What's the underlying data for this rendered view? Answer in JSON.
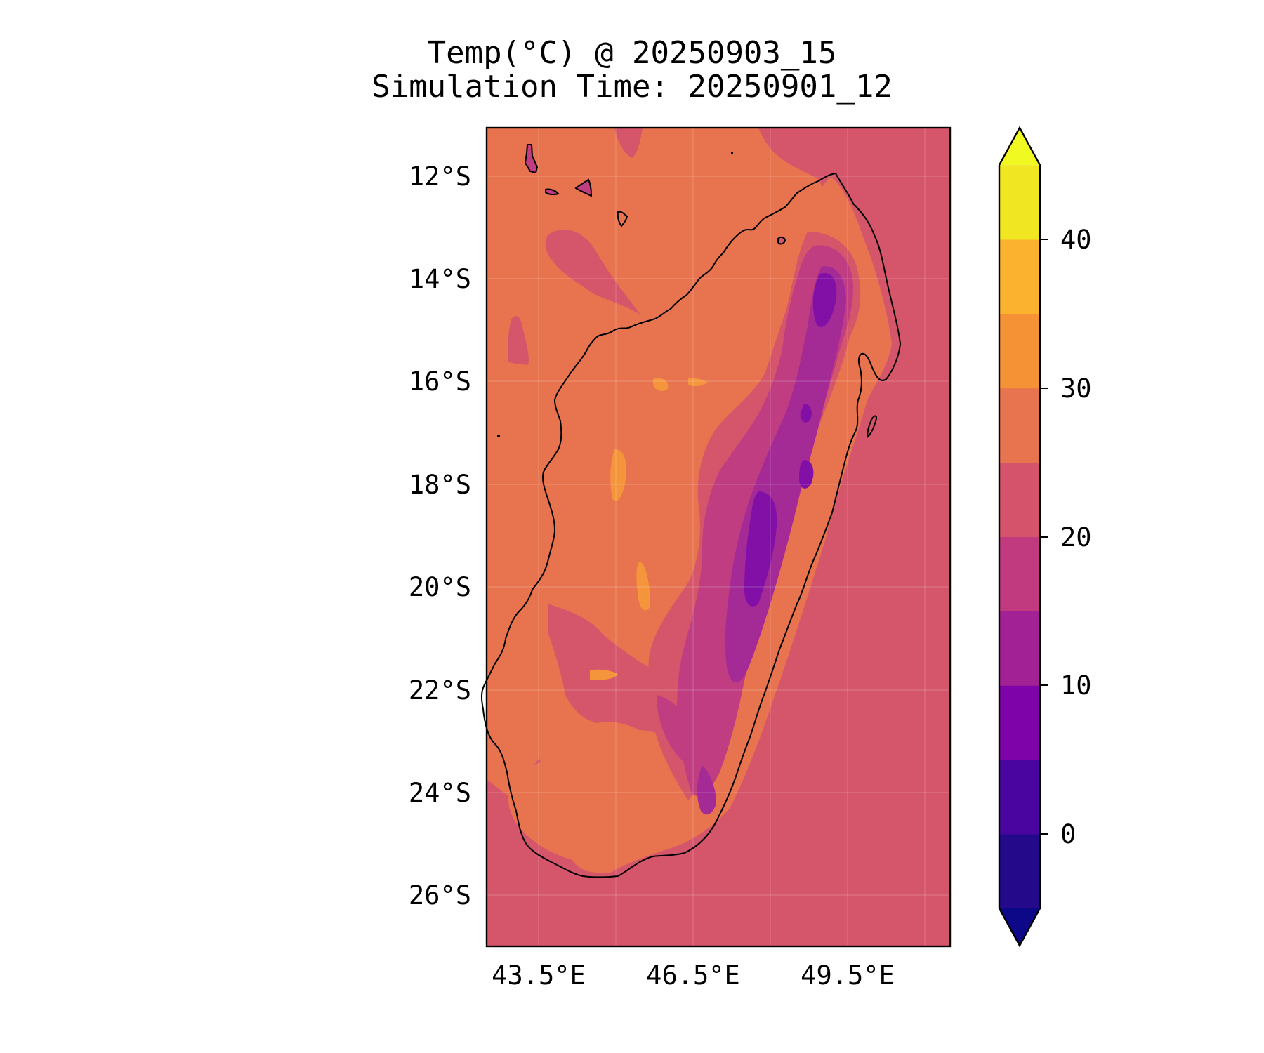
{
  "title": {
    "line1": "Temp(°C) @ 20250903_15",
    "line2": "Simulation Time: 20250901_12"
  },
  "map": {
    "region": "Madagascar",
    "lat_ticks": [
      "12°S",
      "14°S",
      "16°S",
      "18°S",
      "20°S",
      "22°S",
      "24°S",
      "26°S"
    ],
    "lon_ticks": [
      "43.5°E",
      "46.5°E",
      "49.5°E"
    ],
    "lon_range": [
      42.5,
      51.5
    ],
    "lat_range": [
      -27,
      -11.1
    ],
    "gridlines": true,
    "colors": {
      "ocean_north": "#e8744f",
      "ocean_south": "#d5556b",
      "land_warm": "#e8744f",
      "land_hot": "#f4953c",
      "land_mild": "#d5556b",
      "land_cool": "#c03d82",
      "land_cold": "#a42a96",
      "land_coldest": "#8310a6"
    }
  },
  "colorbar": {
    "ticks": [
      "40",
      "30",
      "20",
      "10",
      "0"
    ],
    "extend": "both",
    "bands": [
      {
        "from": -5,
        "to": 0,
        "color": "#240a8b"
      },
      {
        "from": 0,
        "to": 5,
        "color": "#4a05a0"
      },
      {
        "from": 5,
        "to": 10,
        "color": "#7e03a8"
      },
      {
        "from": 10,
        "to": 15,
        "color": "#a22296"
      },
      {
        "from": 15,
        "to": 20,
        "color": "#c13a80"
      },
      {
        "from": 20,
        "to": 25,
        "color": "#d5546c"
      },
      {
        "from": 25,
        "to": 30,
        "color": "#e8734f"
      },
      {
        "from": 30,
        "to": 35,
        "color": "#f59236"
      },
      {
        "from": 35,
        "to": 40,
        "color": "#fbb32f"
      },
      {
        "from": 40,
        "to": 45,
        "color": "#f0e622"
      }
    ],
    "under_color": "#0d0887",
    "over_color": "#f0f921"
  }
}
